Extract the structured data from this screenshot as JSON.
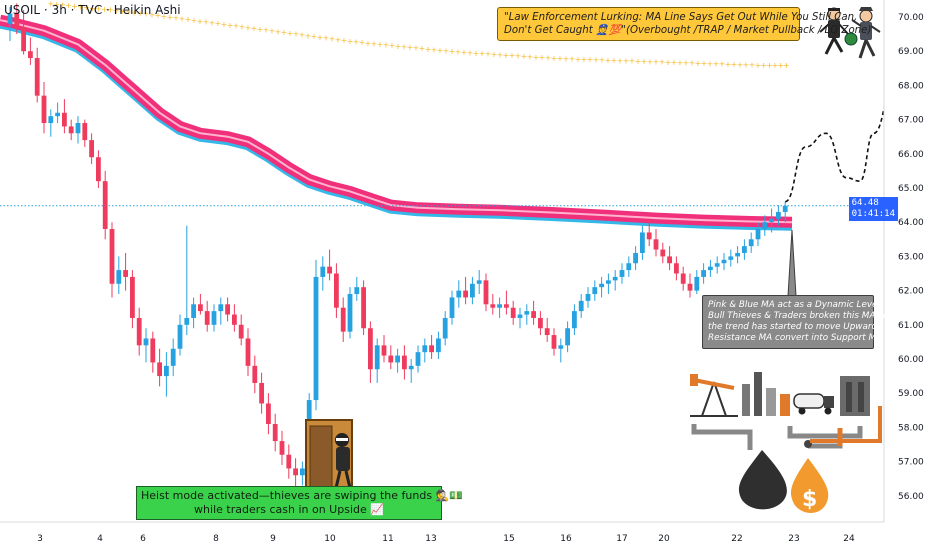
{
  "header": {
    "symbol": "USOIL",
    "interval": "3h",
    "source": "TVC",
    "chart_style": "Heikin Ashi",
    "separator": "·"
  },
  "price_tag": {
    "price": "64.48",
    "countdown": "01:41:14"
  },
  "notes": {
    "top": {
      "line1": "\"Law Enforcement Lurking: MA Line Says Get Out While You Still Can,",
      "line2": "Don't Get Caught 👮💯\"(Overbought /TRAP / Market Pullback / LQ Zone)"
    },
    "right": {
      "lines": [
        "Pink & Blue MA act as a Dynamic Level",
        "Bull Thieves & Traders broken this MA line",
        "the trend has started to move Upwards",
        "Resistance MA convert into Support MA"
      ]
    },
    "bottom": {
      "line1": "Heist mode activated—thieves are swiping the funds 🕵️💵",
      "line2": "while traders cash in on Upside 📈"
    }
  },
  "colors": {
    "up_candle": "#26a2e0",
    "down_candle": "#ef3b5d",
    "ma_ribbon": "#f0307a",
    "ma_ribbon_inner": "#ffb3cf",
    "ma_blue": "#34b8e8",
    "dotted_target": "#f5b82a",
    "current_price_line": "#26a2e0",
    "price_tag_bg": "#2962ff",
    "top_note_bg": "#ffc73a",
    "right_note_bg": "#8a8a8a",
    "bottom_note_bg": "#3ad24a"
  },
  "icons": [
    "robber-with-bag-icon",
    "police-officer-icon",
    "thief-at-door-icon",
    "oil-pump-jack-icon",
    "oil-refinery-icon",
    "oil-tanker-truck-icon",
    "oil-drop-icon",
    "dollar-oil-drop-icon",
    "pipeline-valve-icon"
  ],
  "chart_data": {
    "type": "candlestick",
    "style": "Heikin Ashi",
    "xaxis": {
      "tick_labels": [
        "3",
        "4",
        "6",
        "8",
        "9",
        "10",
        "11",
        "13",
        "15",
        "16",
        "17",
        "20",
        "22",
        "23",
        "24"
      ]
    },
    "yaxis": {
      "position": "right",
      "range": [
        55.5,
        70.5
      ],
      "tick_labels": [
        "56.00",
        "57.00",
        "58.00",
        "59.00",
        "60.00",
        "61.00",
        "62.00",
        "63.00",
        "64.00",
        "65.00",
        "66.00",
        "67.00",
        "68.00",
        "69.00",
        "70.00"
      ],
      "tick_values": [
        56,
        57,
        58,
        59,
        60,
        61,
        62,
        63,
        64,
        65,
        66,
        67,
        68,
        69,
        70
      ]
    },
    "current_price": 64.48,
    "candles": [
      {
        "o": 69.8,
        "h": 70.3,
        "l": 69.3,
        "c": 70.1
      },
      {
        "o": 70.1,
        "h": 70.4,
        "l": 69.5,
        "c": 69.7
      },
      {
        "o": 69.7,
        "h": 70.2,
        "l": 68.9,
        "c": 69.0
      },
      {
        "o": 69.0,
        "h": 69.4,
        "l": 68.6,
        "c": 68.8
      },
      {
        "o": 68.8,
        "h": 69.1,
        "l": 67.5,
        "c": 67.7
      },
      {
        "o": 67.7,
        "h": 68.1,
        "l": 66.6,
        "c": 66.9
      },
      {
        "o": 66.9,
        "h": 67.3,
        "l": 66.5,
        "c": 67.1
      },
      {
        "o": 67.1,
        "h": 67.5,
        "l": 66.9,
        "c": 67.2
      },
      {
        "o": 67.2,
        "h": 67.6,
        "l": 66.6,
        "c": 66.8
      },
      {
        "o": 66.8,
        "h": 67.0,
        "l": 66.4,
        "c": 66.6
      },
      {
        "o": 66.6,
        "h": 67.1,
        "l": 66.3,
        "c": 66.9
      },
      {
        "o": 66.9,
        "h": 67.0,
        "l": 66.2,
        "c": 66.4
      },
      {
        "o": 66.4,
        "h": 66.6,
        "l": 65.7,
        "c": 65.9
      },
      {
        "o": 65.9,
        "h": 66.1,
        "l": 65.0,
        "c": 65.2
      },
      {
        "o": 65.2,
        "h": 65.5,
        "l": 63.5,
        "c": 63.8
      },
      {
        "o": 63.8,
        "h": 64.0,
        "l": 61.8,
        "c": 62.2
      },
      {
        "o": 62.2,
        "h": 63.0,
        "l": 61.9,
        "c": 62.6
      },
      {
        "o": 62.6,
        "h": 63.1,
        "l": 62.0,
        "c": 62.4
      },
      {
        "o": 62.4,
        "h": 62.6,
        "l": 60.9,
        "c": 61.2
      },
      {
        "o": 61.2,
        "h": 61.5,
        "l": 60.1,
        "c": 60.4
      },
      {
        "o": 60.4,
        "h": 60.9,
        "l": 59.9,
        "c": 60.6
      },
      {
        "o": 60.6,
        "h": 60.8,
        "l": 59.6,
        "c": 59.9
      },
      {
        "o": 59.9,
        "h": 60.3,
        "l": 59.2,
        "c": 59.5
      },
      {
        "o": 59.5,
        "h": 60.2,
        "l": 58.9,
        "c": 59.8
      },
      {
        "o": 59.8,
        "h": 60.6,
        "l": 59.5,
        "c": 60.3
      },
      {
        "o": 60.3,
        "h": 61.3,
        "l": 60.1,
        "c": 61.0
      },
      {
        "o": 61.0,
        "h": 63.9,
        "l": 60.7,
        "c": 61.2
      },
      {
        "o": 61.2,
        "h": 61.8,
        "l": 60.9,
        "c": 61.6
      },
      {
        "o": 61.6,
        "h": 61.9,
        "l": 61.3,
        "c": 61.4
      },
      {
        "o": 61.4,
        "h": 61.7,
        "l": 60.8,
        "c": 61.0
      },
      {
        "o": 61.0,
        "h": 61.6,
        "l": 60.8,
        "c": 61.4
      },
      {
        "o": 61.4,
        "h": 61.8,
        "l": 61.0,
        "c": 61.6
      },
      {
        "o": 61.6,
        "h": 61.8,
        "l": 61.1,
        "c": 61.3
      },
      {
        "o": 61.3,
        "h": 61.6,
        "l": 60.8,
        "c": 61.0
      },
      {
        "o": 61.0,
        "h": 61.3,
        "l": 60.4,
        "c": 60.6
      },
      {
        "o": 60.6,
        "h": 60.9,
        "l": 59.5,
        "c": 59.8
      },
      {
        "o": 59.8,
        "h": 60.1,
        "l": 59.0,
        "c": 59.3
      },
      {
        "o": 59.3,
        "h": 59.6,
        "l": 58.4,
        "c": 58.7
      },
      {
        "o": 58.7,
        "h": 59.0,
        "l": 57.8,
        "c": 58.1
      },
      {
        "o": 58.1,
        "h": 58.4,
        "l": 57.3,
        "c": 57.6
      },
      {
        "o": 57.6,
        "h": 57.9,
        "l": 56.9,
        "c": 57.2
      },
      {
        "o": 57.2,
        "h": 57.5,
        "l": 56.5,
        "c": 56.8
      },
      {
        "o": 56.8,
        "h": 57.1,
        "l": 56.2,
        "c": 56.6
      },
      {
        "o": 56.6,
        "h": 57.0,
        "l": 56.3,
        "c": 56.8
      },
      {
        "o": 56.8,
        "h": 59.0,
        "l": 56.5,
        "c": 58.8
      },
      {
        "o": 58.8,
        "h": 62.9,
        "l": 58.5,
        "c": 62.4
      },
      {
        "o": 62.4,
        "h": 63.0,
        "l": 62.0,
        "c": 62.7
      },
      {
        "o": 62.7,
        "h": 63.2,
        "l": 62.3,
        "c": 62.5
      },
      {
        "o": 62.5,
        "h": 62.8,
        "l": 61.2,
        "c": 61.5
      },
      {
        "o": 61.5,
        "h": 61.8,
        "l": 60.5,
        "c": 60.8
      },
      {
        "o": 60.8,
        "h": 62.1,
        "l": 60.6,
        "c": 61.9
      },
      {
        "o": 61.9,
        "h": 62.4,
        "l": 61.7,
        "c": 62.1
      },
      {
        "o": 62.1,
        "h": 62.3,
        "l": 60.7,
        "c": 60.9
      },
      {
        "o": 60.9,
        "h": 61.1,
        "l": 59.3,
        "c": 59.7
      },
      {
        "o": 59.7,
        "h": 60.6,
        "l": 59.3,
        "c": 60.4
      },
      {
        "o": 60.4,
        "h": 60.7,
        "l": 59.9,
        "c": 60.1
      },
      {
        "o": 60.1,
        "h": 60.4,
        "l": 59.7,
        "c": 59.9
      },
      {
        "o": 59.9,
        "h": 60.3,
        "l": 59.6,
        "c": 60.1
      },
      {
        "o": 60.1,
        "h": 60.4,
        "l": 59.4,
        "c": 59.7
      },
      {
        "o": 59.7,
        "h": 60.0,
        "l": 59.3,
        "c": 59.8
      },
      {
        "o": 59.8,
        "h": 60.4,
        "l": 59.6,
        "c": 60.2
      },
      {
        "o": 60.2,
        "h": 60.6,
        "l": 59.9,
        "c": 60.4
      },
      {
        "o": 60.4,
        "h": 60.7,
        "l": 60.0,
        "c": 60.2
      },
      {
        "o": 60.2,
        "h": 60.8,
        "l": 60.0,
        "c": 60.6
      },
      {
        "o": 60.6,
        "h": 61.4,
        "l": 60.4,
        "c": 61.2
      },
      {
        "o": 61.2,
        "h": 62.0,
        "l": 61.0,
        "c": 61.8
      },
      {
        "o": 61.8,
        "h": 62.3,
        "l": 61.5,
        "c": 62.0
      },
      {
        "o": 62.0,
        "h": 62.4,
        "l": 61.6,
        "c": 61.8
      },
      {
        "o": 61.8,
        "h": 62.4,
        "l": 61.6,
        "c": 62.2
      },
      {
        "o": 62.2,
        "h": 62.6,
        "l": 61.9,
        "c": 62.3
      },
      {
        "o": 62.3,
        "h": 62.5,
        "l": 61.4,
        "c": 61.6
      },
      {
        "o": 61.6,
        "h": 61.9,
        "l": 61.3,
        "c": 61.5
      },
      {
        "o": 61.5,
        "h": 61.8,
        "l": 61.2,
        "c": 61.6
      },
      {
        "o": 61.6,
        "h": 62.0,
        "l": 61.3,
        "c": 61.5
      },
      {
        "o": 61.5,
        "h": 61.7,
        "l": 61.0,
        "c": 61.2
      },
      {
        "o": 61.2,
        "h": 61.5,
        "l": 60.9,
        "c": 61.3
      },
      {
        "o": 61.3,
        "h": 61.6,
        "l": 61.0,
        "c": 61.4
      },
      {
        "o": 61.4,
        "h": 61.7,
        "l": 61.0,
        "c": 61.2
      },
      {
        "o": 61.2,
        "h": 61.4,
        "l": 60.7,
        "c": 60.9
      },
      {
        "o": 60.9,
        "h": 61.2,
        "l": 60.5,
        "c": 60.7
      },
      {
        "o": 60.7,
        "h": 60.9,
        "l": 60.1,
        "c": 60.3
      },
      {
        "o": 60.3,
        "h": 60.6,
        "l": 59.9,
        "c": 60.4
      },
      {
        "o": 60.4,
        "h": 61.1,
        "l": 60.2,
        "c": 60.9
      },
      {
        "o": 60.9,
        "h": 61.6,
        "l": 60.7,
        "c": 61.4
      },
      {
        "o": 61.4,
        "h": 61.9,
        "l": 61.2,
        "c": 61.7
      },
      {
        "o": 61.7,
        "h": 62.1,
        "l": 61.5,
        "c": 61.9
      },
      {
        "o": 61.9,
        "h": 62.3,
        "l": 61.7,
        "c": 62.1
      },
      {
        "o": 62.1,
        "h": 62.4,
        "l": 61.8,
        "c": 62.2
      },
      {
        "o": 62.2,
        "h": 62.5,
        "l": 61.9,
        "c": 62.3
      },
      {
        "o": 62.3,
        "h": 62.6,
        "l": 62.0,
        "c": 62.4
      },
      {
        "o": 62.4,
        "h": 62.8,
        "l": 62.2,
        "c": 62.6
      },
      {
        "o": 62.6,
        "h": 63.0,
        "l": 62.4,
        "c": 62.8
      },
      {
        "o": 62.8,
        "h": 63.3,
        "l": 62.6,
        "c": 63.1
      },
      {
        "o": 63.1,
        "h": 63.9,
        "l": 62.9,
        "c": 63.7
      },
      {
        "o": 63.7,
        "h": 64.1,
        "l": 63.3,
        "c": 63.5
      },
      {
        "o": 63.5,
        "h": 63.8,
        "l": 63.0,
        "c": 63.2
      },
      {
        "o": 63.2,
        "h": 63.4,
        "l": 62.8,
        "c": 63.0
      },
      {
        "o": 63.0,
        "h": 63.3,
        "l": 62.6,
        "c": 62.8
      },
      {
        "o": 62.8,
        "h": 63.0,
        "l": 62.3,
        "c": 62.5
      },
      {
        "o": 62.5,
        "h": 62.7,
        "l": 62.0,
        "c": 62.2
      },
      {
        "o": 62.2,
        "h": 62.5,
        "l": 61.8,
        "c": 62.0
      },
      {
        "o": 62.0,
        "h": 62.6,
        "l": 61.9,
        "c": 62.4
      },
      {
        "o": 62.4,
        "h": 62.8,
        "l": 62.2,
        "c": 62.6
      },
      {
        "o": 62.6,
        "h": 62.9,
        "l": 62.4,
        "c": 62.7
      },
      {
        "o": 62.7,
        "h": 63.0,
        "l": 62.5,
        "c": 62.8
      },
      {
        "o": 62.8,
        "h": 63.1,
        "l": 62.6,
        "c": 62.9
      },
      {
        "o": 62.9,
        "h": 63.2,
        "l": 62.7,
        "c": 63.0
      },
      {
        "o": 63.0,
        "h": 63.3,
        "l": 62.8,
        "c": 63.1
      },
      {
        "o": 63.1,
        "h": 63.5,
        "l": 62.9,
        "c": 63.3
      },
      {
        "o": 63.3,
        "h": 63.7,
        "l": 63.1,
        "c": 63.5
      },
      {
        "o": 63.5,
        "h": 64.0,
        "l": 63.3,
        "c": 63.8
      },
      {
        "o": 63.8,
        "h": 64.2,
        "l": 63.6,
        "c": 64.0
      },
      {
        "o": 64.0,
        "h": 64.4,
        "l": 63.7,
        "c": 64.1
      },
      {
        "o": 64.1,
        "h": 64.5,
        "l": 63.9,
        "c": 64.3
      },
      {
        "o": 64.3,
        "h": 64.6,
        "l": 64.0,
        "c": 64.48
      }
    ],
    "ma_ribbon": [
      [
        0,
        69.85
      ],
      [
        5,
        69.6
      ],
      [
        10,
        69.2
      ],
      [
        14,
        68.6
      ],
      [
        18,
        67.9
      ],
      [
        22,
        67.2
      ],
      [
        25,
        66.8
      ],
      [
        28,
        66.6
      ],
      [
        32,
        66.5
      ],
      [
        35,
        66.35
      ],
      [
        38,
        66.0
      ],
      [
        41,
        65.6
      ],
      [
        44,
        65.25
      ],
      [
        47,
        65.05
      ],
      [
        50,
        64.9
      ],
      [
        53,
        64.7
      ],
      [
        56,
        64.5
      ],
      [
        60,
        64.42
      ],
      [
        66,
        64.38
      ],
      [
        72,
        64.35
      ],
      [
        80,
        64.28
      ],
      [
        88,
        64.2
      ],
      [
        95,
        64.12
      ],
      [
        102,
        64.06
      ],
      [
        109,
        64.02
      ],
      [
        115,
        64.0
      ]
    ],
    "target_dots": [
      [
        6,
        70.4
      ],
      [
        20,
        70.1
      ],
      [
        35,
        69.7
      ],
      [
        50,
        69.3
      ],
      [
        65,
        69.0
      ],
      [
        80,
        68.8
      ],
      [
        95,
        68.7
      ],
      [
        110,
        68.6
      ],
      [
        115,
        68.6
      ]
    ],
    "projection_path": [
      [
        114,
        64.6
      ],
      [
        117,
        66.2
      ],
      [
        120,
        66.6
      ],
      [
        123,
        65.3
      ],
      [
        125,
        65.2
      ],
      [
        127,
        66.6
      ],
      [
        130,
        68.0
      ]
    ]
  }
}
